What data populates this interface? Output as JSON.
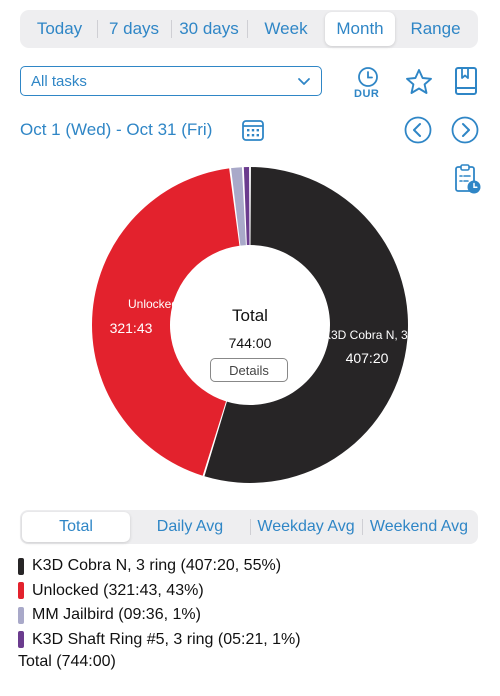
{
  "range_tabs": [
    {
      "label": "Today",
      "active": false
    },
    {
      "label": "7 days",
      "active": false
    },
    {
      "label": "30 days",
      "active": false
    },
    {
      "label": "Week",
      "active": false
    },
    {
      "label": "Month",
      "active": true
    },
    {
      "label": "Range",
      "active": false
    }
  ],
  "filter": {
    "selected": "All tasks"
  },
  "toolbar": {
    "dur_label": "DUR"
  },
  "date_range": "Oct 1 (Wed) - Oct 31 (Fri)",
  "colors": {
    "accent": "#2f86c6",
    "cobra": "#272526",
    "unlocked": "#e3222d",
    "jailbird": "#a9a9c9",
    "shaft": "#6b3c8e"
  },
  "chart_data": {
    "type": "pie",
    "center": {
      "title": "Total",
      "value": "744:00",
      "button": "Details"
    },
    "slices": [
      {
        "label": "K3D Cobra N, 3 ring",
        "slice_label": "K3D Cobra N, 3 ring",
        "duration": "407:20",
        "value": 407.33,
        "percent": 55,
        "color": "#272526"
      },
      {
        "label": "Unlocked",
        "slice_label": "Unlocked",
        "duration": "321:43",
        "value": 321.72,
        "percent": 43,
        "color": "#e3222d"
      },
      {
        "label": "MM Jailbird",
        "slice_label": "",
        "duration": "09:36",
        "value": 9.6,
        "percent": 1,
        "color": "#a9a9c9"
      },
      {
        "label": "K3D Shaft Ring #5, 3 ring",
        "slice_label": "",
        "duration": "05:21",
        "value": 5.35,
        "percent": 1,
        "color": "#6b3c8e"
      }
    ]
  },
  "stat_tabs": [
    {
      "label": "Total",
      "active": true
    },
    {
      "label": "Daily Avg",
      "active": false
    },
    {
      "label": "Weekday Avg",
      "active": false
    },
    {
      "label": "Weekend Avg",
      "active": false
    }
  ],
  "legend": [
    {
      "text": "K3D Cobra N, 3 ring (407:20, 55%)",
      "color": "#272526"
    },
    {
      "text": "Unlocked (321:43, 43%)",
      "color": "#e3222d"
    },
    {
      "text": "MM Jailbird (09:36, 1%)",
      "color": "#a9a9c9"
    },
    {
      "text": "K3D Shaft Ring #5, 3 ring (05:21, 1%)",
      "color": "#6b3c8e"
    }
  ],
  "total_line": "Total (744:00)"
}
